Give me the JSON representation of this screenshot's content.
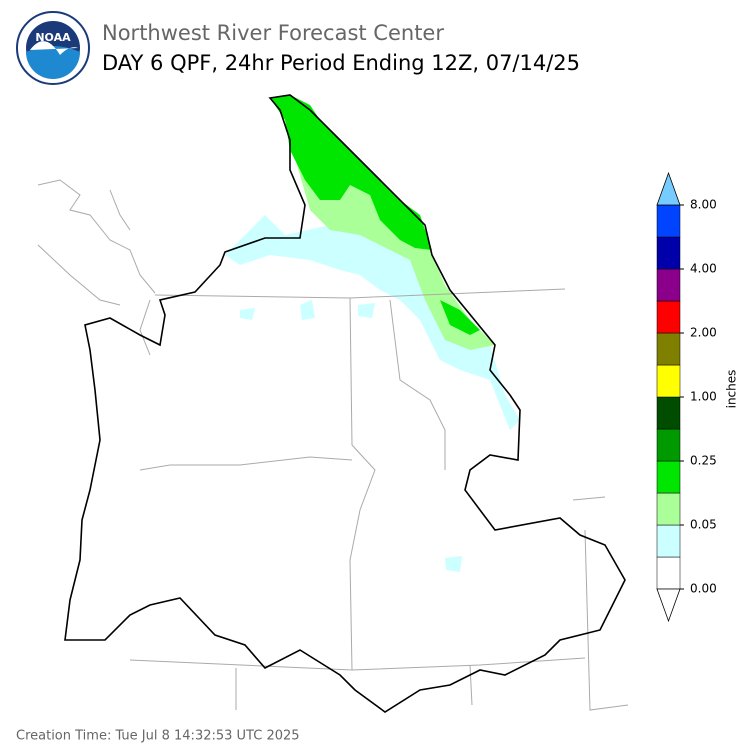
{
  "header": {
    "title": "Northwest River Forecast Center",
    "subtitle": "DAY 6 QPF, 24hr Period Ending 12Z, 07/14/25",
    "logo_text": "NOAA"
  },
  "colorbar": {
    "label": "inches",
    "colors": [
      "#ffffff",
      "#ccffff",
      "#aaff99",
      "#00e600",
      "#009a00",
      "#004d00",
      "#ffff00",
      "#808000",
      "#ff0000",
      "#8b008b",
      "#0000aa",
      "#0044ff"
    ],
    "over_color": "#77ccff",
    "under_color": "#ffffff",
    "ticks": [
      {
        "value": 0,
        "label": "0.00"
      },
      {
        "value": 0.05,
        "label": "0.05"
      },
      {
        "value": 0.25,
        "label": "0.25"
      },
      {
        "value": 1,
        "label": "1.00"
      },
      {
        "value": 2,
        "label": "2.00"
      },
      {
        "value": 4,
        "label": "4.00"
      },
      {
        "value": 8,
        "label": "8.00"
      }
    ]
  },
  "footer": {
    "creation_time": "Creation Time: Tue Jul 8 14:32:53 UTC 2025"
  }
}
